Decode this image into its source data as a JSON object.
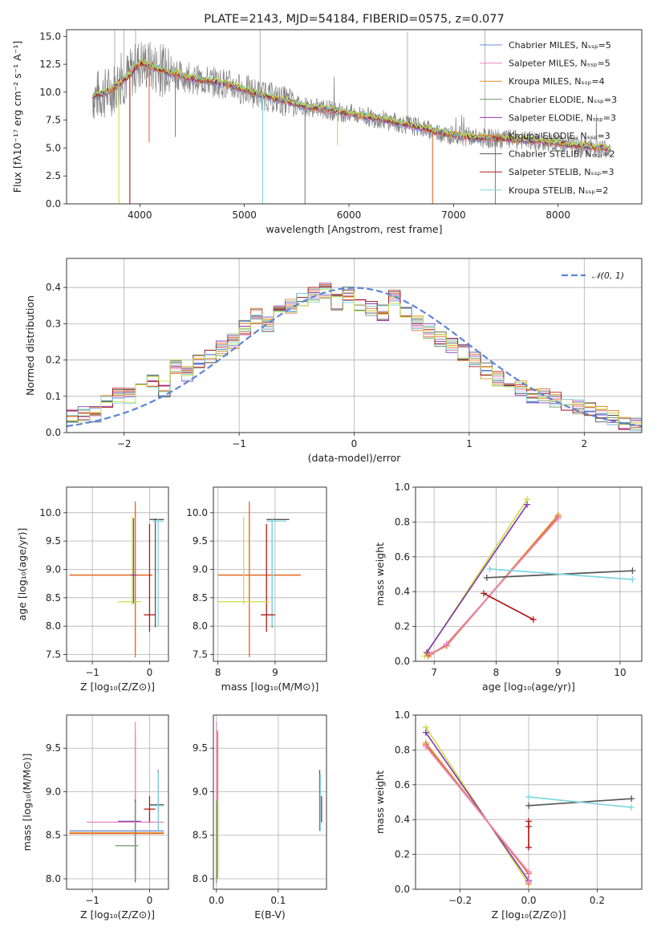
{
  "colors": {
    "c1": "#6a8fd8",
    "c2": "#e889c7",
    "c3": "#e0912c",
    "c4": "#6f9a62",
    "c5": "#8a3cb0",
    "c6": "#e86a2a",
    "c7": "#555555",
    "c8": "#b01b1b",
    "c9": "#7fd6e0",
    "c10": "#c8e04a",
    "data": "#808080",
    "normal": "#5b86d6"
  },
  "chart_data": [
    {
      "type": "line",
      "id": "spectrum",
      "title": "PLATE=2143, MJD=54184, FIBERID=0575, z=0.077",
      "xlabel": "wavelength [Angstrom, rest frame]",
      "ylabel": "Flux [fλ10⁻¹⁷ erg cm⁻² s⁻¹ A⁻¹]",
      "xlim": [
        3300,
        8800
      ],
      "ylim": [
        0,
        15.6
      ],
      "xticks": [
        4000,
        5000,
        6000,
        7000,
        8000
      ],
      "yticks": [
        0.0,
        2.5,
        5.0,
        7.5,
        10.0,
        12.5,
        15.0
      ],
      "legend_position": "top-right",
      "legend": [
        "Chabrier MILES, Nₛₛₚ=5",
        "Salpeter MILES, Nₛₛₚ=5",
        "Kroupa MILES, Nₛₛₚ=4",
        "Chabrier ELODIE, Nₛₛₚ=3",
        "Salpeter ELODIE, Nₛₛₚ=3",
        "Kroupa ELODIE, Nₛₛₚ=3",
        "Chabrier STELIB, Nₛₛₚ=2",
        "Salpeter STELIB, Nₛₛₚ=3",
        "Kroupa STELIB, Nₛₛₚ=2"
      ],
      "continuum": [
        [
          3550,
          9.6
        ],
        [
          3700,
          10.0
        ],
        [
          3900,
          11.5
        ],
        [
          4000,
          12.6
        ],
        [
          4100,
          12.3
        ],
        [
          4300,
          11.7
        ],
        [
          4500,
          11.2
        ],
        [
          4800,
          10.8
        ],
        [
          5000,
          10.2
        ],
        [
          5300,
          9.4
        ],
        [
          5600,
          8.7
        ],
        [
          6000,
          8.1
        ],
        [
          6300,
          7.6
        ],
        [
          6600,
          7.0
        ],
        [
          6900,
          6.3
        ],
        [
          7200,
          5.9
        ],
        [
          7500,
          5.8
        ],
        [
          7800,
          5.6
        ],
        [
          8100,
          5.3
        ],
        [
          8400,
          5.0
        ],
        [
          8500,
          4.9
        ]
      ],
      "absorption_lines": [
        [
          3800,
          0
        ],
        [
          3905,
          0
        ],
        [
          4090,
          5.5
        ],
        [
          4340,
          6.0
        ],
        [
          5175,
          0
        ],
        [
          5580,
          0
        ],
        [
          5890,
          5.2
        ],
        [
          6800,
          0
        ],
        [
          7400,
          0
        ]
      ]
    },
    {
      "type": "line",
      "id": "residuals",
      "xlabel": "(data-model)/error",
      "ylabel": "Normed distribution",
      "xlim": [
        -2.5,
        2.5
      ],
      "ylim": [
        0,
        0.48
      ],
      "xticks": [
        -2,
        -1,
        0,
        1,
        2
      ],
      "yticks": [
        0.0,
        0.1,
        0.2,
        0.3,
        0.4
      ],
      "grid": true,
      "legend_position": "top-right",
      "legend": [
        "𝒩(0, 1)"
      ],
      "bin_width": 0.1,
      "hist_base": [
        0.04,
        0.05,
        0.05,
        0.09,
        0.1,
        0.1,
        0.12,
        0.14,
        0.12,
        0.18,
        0.16,
        0.2,
        0.21,
        0.23,
        0.25,
        0.29,
        0.32,
        0.3,
        0.33,
        0.35,
        0.37,
        0.38,
        0.39,
        0.36,
        0.38,
        0.35,
        0.34,
        0.33,
        0.37,
        0.33,
        0.3,
        0.28,
        0.26,
        0.24,
        0.22,
        0.2,
        0.17,
        0.15,
        0.13,
        0.12,
        0.1,
        0.1,
        0.09,
        0.08,
        0.07,
        0.06,
        0.05,
        0.04,
        0.03,
        0.02
      ]
    },
    {
      "type": "scatter",
      "id": "age-vs-Z",
      "xlabel": "Z [log₁₀(Z/Z⊙)]",
      "ylabel": "age  [log₁₀(age/yr)]",
      "xlim": [
        -1.45,
        0.33
      ],
      "ylim": [
        7.38,
        10.45
      ],
      "xticks": [
        -1,
        0
      ],
      "yticks": [
        7.5,
        8.0,
        8.5,
        9.0,
        9.5,
        10.0
      ],
      "grid": true,
      "points": [
        {
          "series": 3,
          "x": -0.25,
          "y": 8.9,
          "xerr": [
            1.15,
            0.3
          ],
          "yerr": [
            1.4,
            1.25
          ]
        },
        {
          "series": 6,
          "x": -0.25,
          "y": 8.9,
          "xerr": [
            1.15,
            0.3
          ],
          "yerr": [
            1.45,
            1.3
          ]
        },
        {
          "series": 7,
          "x": 0.1,
          "y": 9.88,
          "xerr": [
            0.1,
            0.15
          ],
          "yerr": [
            1.9,
            0.02
          ]
        },
        {
          "series": 9,
          "x": 0.15,
          "y": 9.85,
          "xerr": [
            0.1,
            0.1
          ],
          "yerr": [
            1.85,
            0.05
          ]
        },
        {
          "series": 8,
          "x": 0.0,
          "y": 8.2,
          "xerr": [
            0.1,
            0.1
          ],
          "yerr": [
            0.3,
            1.6
          ]
        },
        {
          "series": 10,
          "x": -0.3,
          "y": 8.43,
          "xerr": [
            0.25,
            0.15
          ],
          "yerr": [
            0.05,
            1.5
          ]
        },
        {
          "series": 5,
          "x": -0.28,
          "y": 8.9,
          "xerr": [
            0.05,
            0.05
          ],
          "yerr": [
            0.5,
            1.0
          ]
        }
      ]
    },
    {
      "type": "scatter",
      "id": "age-vs-mass",
      "xlabel": "mass [log₁₀(M/M⊙)]",
      "ylabel": "",
      "xlim": [
        7.92,
        9.9
      ],
      "ylim": [
        7.38,
        10.45
      ],
      "xticks": [
        8,
        9
      ],
      "yticks": [
        7.5,
        8.0,
        8.5,
        9.0,
        9.5,
        10.0
      ],
      "grid": true,
      "points": [
        {
          "series": 3,
          "x": 8.55,
          "y": 8.9,
          "xerr": [
            0.55,
            0.9
          ],
          "yerr": [
            1.4,
            1.25
          ]
        },
        {
          "series": 6,
          "x": 8.55,
          "y": 8.9,
          "xerr": [
            0.55,
            0.9
          ],
          "yerr": [
            1.45,
            1.3
          ]
        },
        {
          "series": 7,
          "x": 8.95,
          "y": 9.88,
          "xerr": [
            0.1,
            0.3
          ],
          "yerr": [
            1.9,
            0.02
          ]
        },
        {
          "series": 9,
          "x": 8.95,
          "y": 9.85,
          "xerr": [
            0.1,
            0.25
          ],
          "yerr": [
            1.85,
            0.05
          ]
        },
        {
          "series": 8,
          "x": 8.85,
          "y": 8.2,
          "xerr": [
            0.1,
            0.15
          ],
          "yerr": [
            0.3,
            1.6
          ]
        },
        {
          "series": 10,
          "x": 8.45,
          "y": 8.43,
          "xerr": [
            0.45,
            0.45
          ],
          "yerr": [
            0.05,
            1.5
          ]
        }
      ]
    },
    {
      "type": "line",
      "id": "weight-vs-age",
      "xlabel": "age  [log₁₀(age/yr)]",
      "ylabel": "mass weight",
      "xlim": [
        6.7,
        10.35
      ],
      "ylim": [
        0,
        1.0
      ],
      "xticks": [
        7,
        8,
        9,
        10
      ],
      "yticks": [
        0.0,
        0.2,
        0.4,
        0.6,
        0.8,
        1.0
      ],
      "grid": true,
      "series": [
        {
          "color": "c10",
          "x": [
            6.85,
            8.5
          ],
          "y": [
            0.03,
            0.93
          ]
        },
        {
          "color": "c5",
          "x": [
            6.88,
            8.5
          ],
          "y": [
            0.05,
            0.9
          ]
        },
        {
          "color": "c3",
          "x": [
            6.9,
            7.2,
            9.0
          ],
          "y": [
            0.03,
            0.09,
            0.84
          ]
        },
        {
          "color": "c6",
          "x": [
            6.92,
            7.2,
            9.0
          ],
          "y": [
            0.04,
            0.09,
            0.83
          ]
        },
        {
          "color": "c2",
          "x": [
            6.95,
            7.2,
            9.0
          ],
          "y": [
            0.04,
            0.1,
            0.82
          ]
        },
        {
          "color": "c7",
          "x": [
            7.85,
            10.2
          ],
          "y": [
            0.48,
            0.52
          ]
        },
        {
          "color": "c9",
          "x": [
            7.9,
            10.2
          ],
          "y": [
            0.53,
            0.47
          ]
        },
        {
          "color": "c8",
          "x": [
            7.8,
            8.6
          ],
          "y": [
            0.39,
            0.24
          ]
        }
      ]
    },
    {
      "type": "scatter",
      "id": "mass-vs-Z",
      "xlabel": "Z [log₁₀(Z/Z⊙)]",
      "ylabel": "mass [log₁₀(M/M⊙)]",
      "xlim": [
        -1.45,
        0.33
      ],
      "ylim": [
        7.88,
        9.88
      ],
      "xticks": [
        -1,
        0
      ],
      "yticks": [
        8.0,
        8.5,
        9.0,
        9.5
      ],
      "grid": true,
      "points": [
        {
          "series": 1,
          "x": -0.25,
          "y": 8.55,
          "xerr": [
            1.15,
            0.5
          ],
          "yerr": [
            0.55,
            0.2
          ]
        },
        {
          "series": 3,
          "x": -0.25,
          "y": 8.53,
          "xerr": [
            1.15,
            0.5
          ],
          "yerr": [
            0.5,
            0.3
          ]
        },
        {
          "series": 6,
          "x": -0.25,
          "y": 8.52,
          "xerr": [
            1.15,
            0.5
          ],
          "yerr": [
            0.4,
            1.15
          ]
        },
        {
          "series": 2,
          "x": -0.25,
          "y": 8.65,
          "xerr": [
            0.85,
            0.5
          ],
          "yerr": [
            0.6,
            1.15
          ]
        },
        {
          "series": 5,
          "x": -0.25,
          "y": 8.66,
          "xerr": [
            0.3,
            0.1
          ],
          "yerr": [
            0.7,
            0.25
          ]
        },
        {
          "series": 4,
          "x": -0.25,
          "y": 8.38,
          "xerr": [
            0.35,
            0.05
          ],
          "yerr": [
            0.4,
            0.5
          ]
        },
        {
          "series": 7,
          "x": 0.15,
          "y": 8.85,
          "xerr": [
            0.15,
            0.1
          ],
          "yerr": [
            0.3,
            0.4
          ]
        },
        {
          "series": 9,
          "x": 0.15,
          "y": 8.84,
          "xerr": [
            0.15,
            0.1
          ],
          "yerr": [
            0.3,
            0.4
          ]
        },
        {
          "series": 8,
          "x": 0.0,
          "y": 8.8,
          "xerr": [
            0.1,
            0.1
          ],
          "yerr": [
            0.15,
            0.15
          ]
        }
      ]
    },
    {
      "type": "scatter",
      "id": "mass-vs-ebv",
      "xlabel": "E(B-V)",
      "ylabel": "",
      "xlim": [
        -0.005,
        0.178
      ],
      "ylim": [
        7.88,
        9.88
      ],
      "xticks": [
        0.0,
        0.1
      ],
      "yticks": [
        8.0,
        8.5,
        9.0,
        9.5
      ],
      "grid": true,
      "points": [
        {
          "series": 2,
          "x": 0.0,
          "y": 8.8,
          "xerr": [
            0,
            0
          ],
          "yerr": [
            0.8,
            1.0
          ]
        },
        {
          "series": 6,
          "x": 0.002,
          "y": 8.8,
          "xerr": [
            0,
            0
          ],
          "yerr": [
            0.8,
            0.9
          ]
        },
        {
          "series": 10,
          "x": 0.001,
          "y": 8.4,
          "xerr": [
            0,
            0
          ],
          "yerr": [
            0.4,
            0.5
          ]
        },
        {
          "series": 4,
          "x": 0.0,
          "y": 8.2,
          "xerr": [
            0,
            0
          ],
          "yerr": [
            0.25,
            0.7
          ]
        },
        {
          "series": 7,
          "x": 0.167,
          "y": 8.85,
          "xerr": [
            0,
            0
          ],
          "yerr": [
            0.3,
            0.4
          ]
        },
        {
          "series": 9,
          "x": 0.168,
          "y": 8.8,
          "xerr": [
            0,
            0
          ],
          "yerr": [
            0.25,
            0.4
          ]
        },
        {
          "series": 8,
          "x": 0.17,
          "y": 8.8,
          "xerr": [
            0,
            0
          ],
          "yerr": [
            0.15,
            0.15
          ]
        }
      ]
    },
    {
      "type": "line",
      "id": "weight-vs-Z",
      "xlabel": "Z [log₁₀(Z/Z⊙)]",
      "ylabel": "mass weight",
      "xlim": [
        -0.33,
        0.33
      ],
      "ylim": [
        0,
        1.0
      ],
      "xticks": [
        -0.2,
        0.0,
        0.2
      ],
      "yticks": [
        0.0,
        0.2,
        0.4,
        0.6,
        0.8,
        1.0
      ],
      "grid": true,
      "series": [
        {
          "color": "c10",
          "x": [
            -0.3,
            0.0
          ],
          "y": [
            0.93,
            0.03
          ]
        },
        {
          "color": "c5",
          "x": [
            -0.3,
            0.0
          ],
          "y": [
            0.9,
            0.05
          ]
        },
        {
          "color": "c3",
          "x": [
            -0.3,
            0.0,
            0.0
          ],
          "y": [
            0.84,
            0.09,
            0.03
          ]
        },
        {
          "color": "c6",
          "x": [
            -0.3,
            0.0,
            0.0
          ],
          "y": [
            0.83,
            0.09,
            0.04
          ]
        },
        {
          "color": "c2",
          "x": [
            -0.3,
            0.0,
            0.0
          ],
          "y": [
            0.82,
            0.1,
            0.04
          ]
        },
        {
          "color": "c7",
          "x": [
            0.0,
            0.3
          ],
          "y": [
            0.48,
            0.52
          ]
        },
        {
          "color": "c9",
          "x": [
            0.0,
            0.3
          ],
          "y": [
            0.53,
            0.47
          ]
        },
        {
          "color": "c8",
          "x": [
            0.0,
            0.0,
            0.0
          ],
          "y": [
            0.39,
            0.36,
            0.24
          ]
        }
      ]
    }
  ]
}
